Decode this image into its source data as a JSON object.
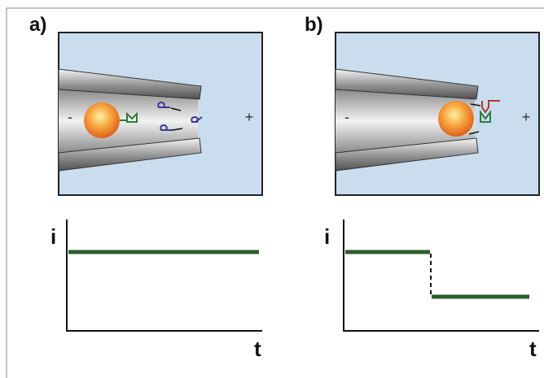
{
  "panels": [
    {
      "label": "a)",
      "minus": "-",
      "plus": "+",
      "y_axis": "i",
      "x_axis": "t"
    },
    {
      "label": "b)",
      "minus": "-",
      "plus": "+",
      "y_axis": "i",
      "x_axis": "t"
    }
  ]
}
